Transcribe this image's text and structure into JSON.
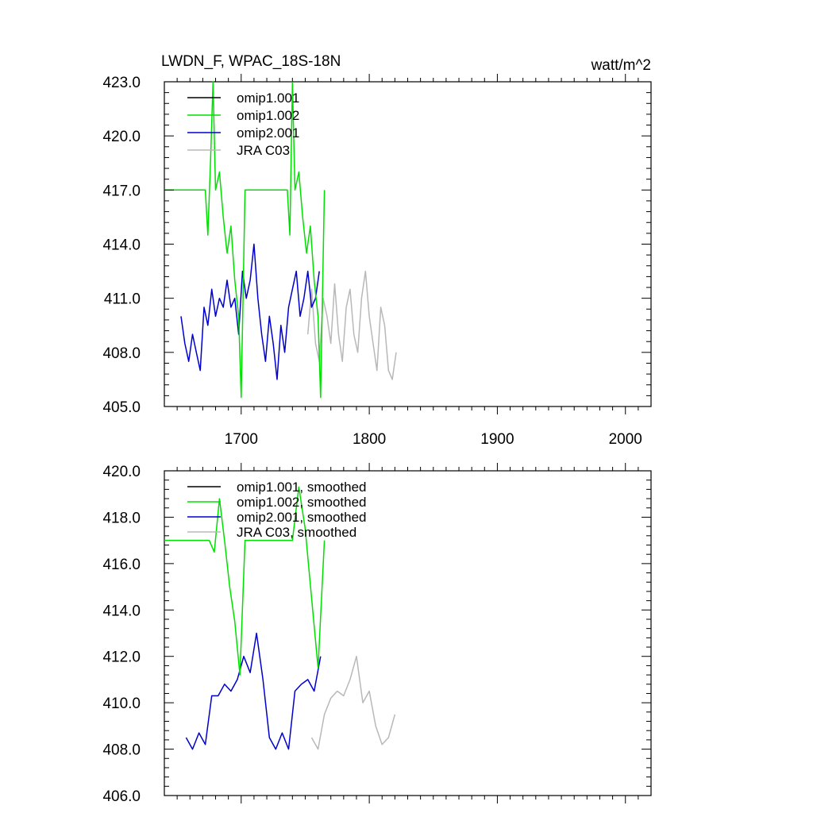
{
  "chart_data": [
    {
      "type": "line",
      "title": "LWDN_F, WPAC_18S-18N",
      "units": "watt/m^2",
      "xlabel": "",
      "ylabel": "",
      "xlim": [
        1640,
        2020
      ],
      "ylim": [
        405.0,
        423.0
      ],
      "xticks": [
        1700,
        1800,
        1900,
        2000
      ],
      "xtick_labels": [
        "1700",
        "1800",
        "1900",
        "2000"
      ],
      "yticks": [
        405.0,
        408.0,
        411.0,
        414.0,
        417.0,
        420.0,
        423.0
      ],
      "ytick_labels": [
        "405.0",
        "408.0",
        "411.0",
        "414.0",
        "417.0",
        "420.0",
        "423.0"
      ],
      "legend": [
        {
          "label": "omip1.001",
          "color": "#000000"
        },
        {
          "label": "omip1.002",
          "color": "#00e000"
        },
        {
          "label": "omip2.001",
          "color": "#0000cc"
        },
        {
          "label": "JRA C03",
          "color": "#b8b8b8"
        }
      ],
      "series": [
        {
          "name": "JRA C03",
          "color": "#b8b8b8",
          "x": [
            1752,
            1755,
            1758,
            1761,
            1764,
            1767,
            1770,
            1773,
            1776,
            1779,
            1782,
            1785,
            1788,
            1791,
            1794,
            1797,
            1800,
            1803,
            1806,
            1809,
            1812,
            1815,
            1818,
            1821
          ],
          "values": [
            409.0,
            411.5,
            408.5,
            407.5,
            411.0,
            410.0,
            408.5,
            411.8,
            409.0,
            407.5,
            410.5,
            411.5,
            409.0,
            408.0,
            411.0,
            412.5,
            410.0,
            408.5,
            407.0,
            410.5,
            409.5,
            407.0,
            406.5,
            408.0
          ]
        },
        {
          "name": "omip2.001",
          "color": "#0000cc",
          "x": [
            1653,
            1656,
            1659,
            1662,
            1665,
            1668,
            1671,
            1674,
            1677,
            1680,
            1683,
            1686,
            1689,
            1692,
            1695,
            1698,
            1701,
            1704,
            1707,
            1710,
            1713,
            1716,
            1719,
            1722,
            1725,
            1728,
            1731,
            1734,
            1737,
            1740,
            1743,
            1746,
            1749,
            1752,
            1755,
            1758,
            1761
          ],
          "values": [
            410.0,
            408.5,
            407.5,
            409.0,
            408.0,
            407.0,
            410.5,
            409.5,
            411.5,
            410.0,
            411.0,
            410.5,
            412.0,
            410.5,
            411.0,
            409.0,
            412.5,
            411.0,
            412.0,
            414.0,
            411.0,
            409.0,
            407.5,
            410.0,
            408.5,
            406.5,
            409.5,
            408.0,
            410.5,
            411.5,
            412.5,
            410.0,
            411.0,
            412.5,
            410.5,
            411.0,
            412.5
          ]
        },
        {
          "name": "omip1.002",
          "color": "#00e000",
          "x": [
            1640,
            1672,
            1674,
            1676,
            1678,
            1680,
            1683,
            1686,
            1689,
            1692,
            1695,
            1698,
            1700,
            1703,
            1736,
            1738,
            1740,
            1742,
            1745,
            1748,
            1751,
            1754,
            1757,
            1760,
            1762,
            1765
          ],
          "values": [
            417.0,
            417.0,
            414.5,
            418.5,
            423.0,
            417.0,
            418.0,
            415.5,
            413.5,
            415.0,
            412.0,
            410.0,
            405.5,
            417.0,
            417.0,
            414.5,
            423.0,
            417.0,
            418.0,
            415.5,
            413.5,
            415.0,
            412.0,
            410.0,
            405.5,
            417.0
          ]
        }
      ]
    },
    {
      "type": "line",
      "title": "",
      "xlabel": "",
      "ylabel": "",
      "xlim": [
        1640,
        2020
      ],
      "ylim": [
        406.0,
        420.0
      ],
      "xticks": [
        1700,
        1800,
        1900,
        2000
      ],
      "yticks": [
        406.0,
        408.0,
        410.0,
        412.0,
        414.0,
        416.0,
        418.0,
        420.0
      ],
      "ytick_labels": [
        "406.0",
        "408.0",
        "410.0",
        "412.0",
        "414.0",
        "416.0",
        "418.0",
        "420.0"
      ],
      "legend": [
        {
          "label": "omip1.001, smoothed",
          "color": "#000000"
        },
        {
          "label": "omip1.002, smoothed",
          "color": "#00e000"
        },
        {
          "label": "omip2.001, smoothed",
          "color": "#0000cc"
        },
        {
          "label": "JRA C03, smoothed",
          "color": "#b8b8b8"
        }
      ],
      "series": [
        {
          "name": "JRA C03, smoothed",
          "color": "#b8b8b8",
          "x": [
            1755,
            1760,
            1765,
            1770,
            1775,
            1780,
            1785,
            1790,
            1795,
            1800,
            1805,
            1810,
            1815,
            1820
          ],
          "values": [
            408.5,
            408.0,
            409.5,
            410.2,
            410.5,
            410.3,
            411.0,
            412.0,
            410.0,
            410.5,
            409.0,
            408.2,
            408.5,
            409.5
          ]
        },
        {
          "name": "omip2.001, smoothed",
          "color": "#0000cc",
          "x": [
            1657,
            1662,
            1667,
            1672,
            1677,
            1682,
            1687,
            1692,
            1697,
            1702,
            1707,
            1712,
            1717,
            1722,
            1727,
            1732,
            1737,
            1742,
            1747,
            1752,
            1757,
            1762
          ],
          "values": [
            408.5,
            408.0,
            408.7,
            408.2,
            410.3,
            410.3,
            410.8,
            410.5,
            411.0,
            412.0,
            411.3,
            413.0,
            411.0,
            408.5,
            408.0,
            408.7,
            408.0,
            410.5,
            410.8,
            411.0,
            410.5,
            412.0
          ]
        },
        {
          "name": "omip1.002, smoothed",
          "color": "#00e000",
          "x": [
            1640,
            1675,
            1679,
            1683,
            1687,
            1691,
            1695,
            1699,
            1703,
            1740,
            1745,
            1750,
            1755,
            1760,
            1765
          ],
          "values": [
            417.0,
            417.0,
            416.5,
            418.8,
            417.0,
            415.0,
            413.5,
            411.2,
            417.0,
            417.0,
            419.3,
            417.5,
            414.5,
            411.5,
            417.0
          ]
        }
      ]
    }
  ]
}
